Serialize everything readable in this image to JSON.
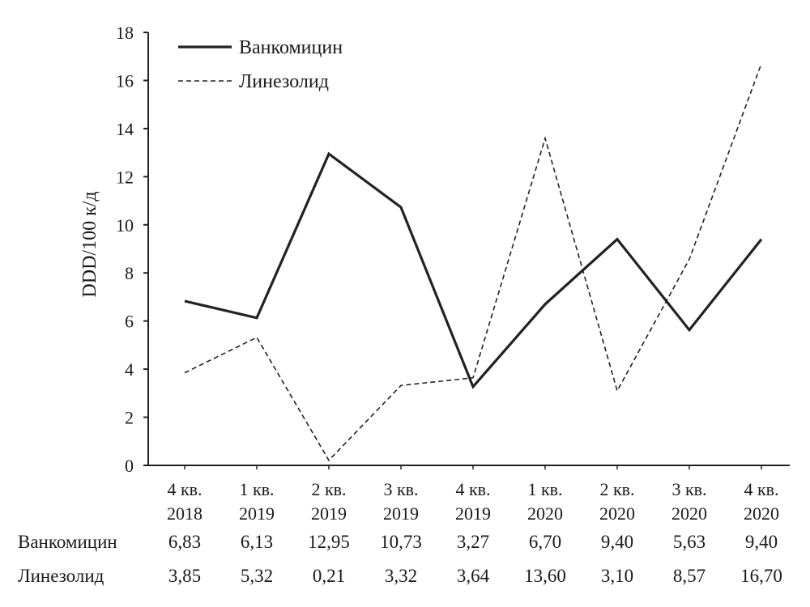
{
  "chart_data": {
    "type": "line",
    "title": "",
    "xlabel": "",
    "ylabel": "DDD/100 к/д",
    "ylim": [
      0,
      18
    ],
    "yticks": [
      "0",
      "2",
      "4",
      "6",
      "8",
      "10",
      "12",
      "14",
      "16",
      "18"
    ],
    "categories": [
      [
        "4 кв.",
        "2018"
      ],
      [
        "1 кв.",
        "2019"
      ],
      [
        "2 кв.",
        "2019"
      ],
      [
        "3 кв.",
        "2019"
      ],
      [
        "4 кв.",
        "2019"
      ],
      [
        "1 кв.",
        "2020"
      ],
      [
        "2 кв.",
        "2020"
      ],
      [
        "3 кв.",
        "2020"
      ],
      [
        "4 кв.",
        "2020"
      ]
    ],
    "series": [
      {
        "name": "Ванкомицин",
        "style": "solid",
        "values": [
          6.83,
          6.13,
          12.95,
          10.73,
          3.27,
          6.7,
          9.4,
          5.63,
          9.4
        ],
        "labels": [
          "6,83",
          "6,13",
          "12,95",
          "10,73",
          "3,27",
          "6,70",
          "9,40",
          "5,63",
          "9,40"
        ]
      },
      {
        "name": "Линезолид",
        "style": "dashed",
        "values": [
          3.85,
          5.32,
          0.21,
          3.32,
          3.64,
          13.6,
          3.1,
          8.57,
          16.7
        ],
        "labels": [
          "3,85",
          "5,32",
          "0,21",
          "3,32",
          "3,64",
          "13,60",
          "3,10",
          "8,57",
          "16,70"
        ]
      }
    ],
    "grid": false,
    "legend_position": "top-left",
    "line_color": "#222222"
  }
}
